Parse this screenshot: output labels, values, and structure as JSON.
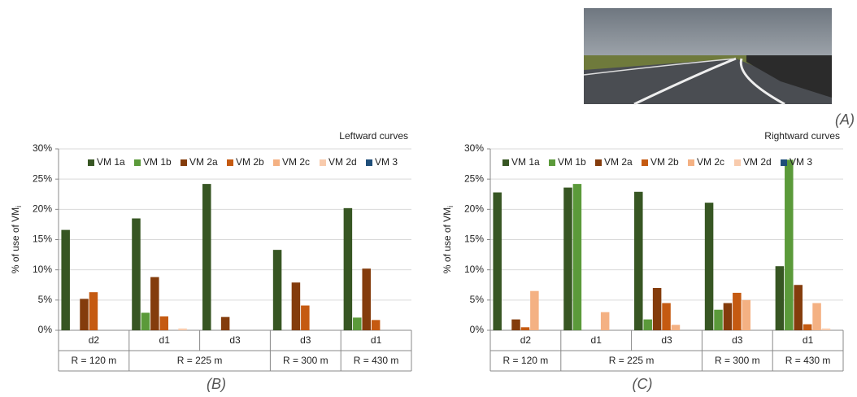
{
  "photo_label": "(A)",
  "chart_data": [
    {
      "type": "bar",
      "title": "Leftward curves",
      "panel_label": "(B)",
      "y_label": "% of use of VM",
      "y_label_sub": "i",
      "categories": [
        "d2",
        "d1",
        "d3",
        "d3",
        "d1"
      ],
      "category_groups": [
        "R = 120 m",
        "R = 225 m",
        null,
        "R = 300 m",
        "R = 430 m"
      ],
      "series": [
        {
          "name": "VM 1a",
          "color": "#375623",
          "values": [
            16.6,
            18.5,
            24.2,
            13.3,
            20.2
          ]
        },
        {
          "name": "VM 1b",
          "color": "#5b9a3a",
          "values": [
            0,
            2.9,
            0,
            0,
            2.1
          ]
        },
        {
          "name": "VM 2a",
          "color": "#843c0c",
          "values": [
            5.2,
            8.8,
            2.2,
            7.9,
            10.2
          ]
        },
        {
          "name": "VM 2b",
          "color": "#c55a11",
          "values": [
            6.3,
            2.3,
            0,
            4.1,
            1.7
          ]
        },
        {
          "name": "VM 2c",
          "color": "#f4b183",
          "values": [
            0,
            0,
            0,
            0,
            0
          ]
        },
        {
          "name": "VM 2d",
          "color": "#f8cbad",
          "values": [
            0,
            0.3,
            0,
            0,
            0
          ]
        },
        {
          "name": "VM 3",
          "color": "#1f4e79",
          "values": [
            0,
            0,
            0,
            0,
            0
          ]
        }
      ],
      "ylim": [
        0,
        30
      ],
      "yticks": [
        {
          "value": 0,
          "label": "0%"
        },
        {
          "value": 5,
          "label": "5%"
        },
        {
          "value": 10,
          "label": "10%"
        },
        {
          "value": 15,
          "label": "15%"
        },
        {
          "value": 20,
          "label": "20%"
        },
        {
          "value": 25,
          "label": "25%"
        },
        {
          "value": 30,
          "label": "30%"
        }
      ],
      "grid": true
    },
    {
      "type": "bar",
      "title": "Rightward curves",
      "panel_label": "(C)",
      "y_label": "% of use of VM",
      "y_label_sub": "i",
      "categories": [
        "d2",
        "d1",
        "d3",
        "d3",
        "d1"
      ],
      "category_groups": [
        "R = 120 m",
        "R = 225 m",
        null,
        "R = 300 m",
        "R = 430 m"
      ],
      "series": [
        {
          "name": "VM 1a",
          "color": "#375623",
          "values": [
            22.8,
            23.6,
            22.9,
            21.1,
            10.6
          ]
        },
        {
          "name": "VM 1b",
          "color": "#5b9a3a",
          "values": [
            0,
            24.2,
            1.8,
            3.4,
            28.2
          ]
        },
        {
          "name": "VM 2a",
          "color": "#843c0c",
          "values": [
            1.8,
            0,
            7.0,
            4.5,
            7.5
          ]
        },
        {
          "name": "VM 2b",
          "color": "#c55a11",
          "values": [
            0.5,
            0,
            4.5,
            6.2,
            1.0
          ]
        },
        {
          "name": "VM 2c",
          "color": "#f4b183",
          "values": [
            6.5,
            3.0,
            0.9,
            5.0,
            4.5
          ]
        },
        {
          "name": "VM 2d",
          "color": "#f8cbad",
          "values": [
            0,
            0,
            0,
            0,
            0.3
          ]
        },
        {
          "name": "VM 3",
          "color": "#1f4e79",
          "values": [
            0,
            0,
            0,
            0,
            0
          ]
        }
      ],
      "ylim": [
        0,
        30
      ],
      "yticks": [
        {
          "value": 0,
          "label": "0%"
        },
        {
          "value": 5,
          "label": "5%"
        },
        {
          "value": 10,
          "label": "10%"
        },
        {
          "value": 15,
          "label": "15%"
        },
        {
          "value": 20,
          "label": "20%"
        },
        {
          "value": 25,
          "label": "25%"
        },
        {
          "value": 30,
          "label": "30%"
        }
      ],
      "grid": true
    }
  ]
}
